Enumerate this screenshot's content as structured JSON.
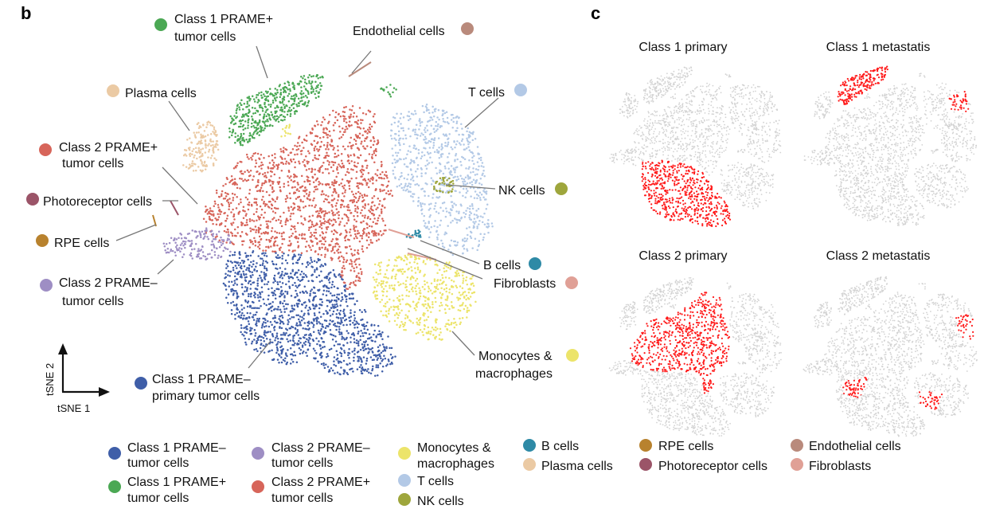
{
  "panel_b_letter": "b",
  "panel_c_letter": "c",
  "colors": {
    "class1_prame_minus": "#3f5ea8",
    "class1_prame_plus": "#4ba854",
    "class2_prame_minus": "#9e8ec4",
    "class2_prame_plus": "#d7655a",
    "monocytes": "#ece46a",
    "t_cells": "#b3c9e6",
    "nk_cells": "#9ea63c",
    "b_cells": "#2e8aa6",
    "plasma": "#ebcaa4",
    "rpe": "#b8822e",
    "photoreceptor": "#9b5468",
    "endothelial": "#b98a7c",
    "fibroblasts": "#e0a096",
    "background_grey": "#d2d2d2",
    "highlight_red": "#ff1a1a"
  },
  "axes": {
    "x_label": "tSNE 1",
    "y_label": "tSNE 2"
  },
  "cluster_labels": {
    "class1_plus_l1": "Class 1 PRAME+",
    "class1_plus_l2": "tumor cells",
    "endothelial": "Endothelial cells",
    "plasma": "Plasma cells",
    "t_cells": "T cells",
    "class2_plus_l1": "Class 2 PRAME+",
    "class2_plus_l2": "tumor cells",
    "photoreceptor": "Photoreceptor cells",
    "nk_cells": "NK cells",
    "rpe": "RPE cells",
    "b_cells": "B cells",
    "fibroblasts": "Fibroblasts",
    "class2_minus_l1": "Class 2 PRAME–",
    "class2_minus_l2": "tumor cells",
    "monocytes_l1": "Monocytes &",
    "monocytes_l2": "macrophages",
    "class1_minus_l1": "Class 1 PRAME–",
    "class1_minus_l2": "primary tumor cells"
  },
  "panel_c_titles": {
    "c1p": "Class 1 primary",
    "c1m": "Class 1 metastatis",
    "c2p": "Class 2 primary",
    "c2m": "Class 2 metastatis"
  },
  "legend": {
    "class1_minus_l1": "Class 1 PRAME–",
    "class1_minus_l2": "tumor cells",
    "class1_plus_l1": "Class 1 PRAME+",
    "class1_plus_l2": "tumor cells",
    "class2_minus_l1": "Class 2 PRAME–",
    "class2_minus_l2": "tumor cells",
    "class2_plus_l1": "Class 2 PRAME+",
    "class2_plus_l2": "tumor cells",
    "monocytes_l1": "Monocytes &",
    "monocytes_l2": "macrophages",
    "t_cells": "T cells",
    "nk_cells": "NK cells",
    "b_cells": "B cells",
    "plasma": "Plasma cells",
    "rpe": "RPE cells",
    "photoreceptor": "Photoreceptor cells",
    "endothelial": "Endothelial cells",
    "fibroblasts": "Fibroblasts"
  },
  "chart_data": {
    "type": "scatter",
    "xlabel": "tSNE 1",
    "ylabel": "tSNE 2",
    "series": [
      {
        "name": "Class 1 PRAME– tumor cells"
      },
      {
        "name": "Class 1 PRAME+ tumor cells"
      },
      {
        "name": "Class 2 PRAME– tumor cells"
      },
      {
        "name": "Class 2 PRAME+ tumor cells"
      },
      {
        "name": "Monocytes & macrophages"
      },
      {
        "name": "T cells"
      },
      {
        "name": "NK cells"
      },
      {
        "name": "B cells"
      },
      {
        "name": "Plasma cells"
      },
      {
        "name": "RPE cells"
      },
      {
        "name": "Photoreceptor cells"
      },
      {
        "name": "Endothelial cells"
      },
      {
        "name": "Fibroblasts"
      }
    ],
    "subplots": [
      "Class 1 primary",
      "Class 1 metastatis",
      "Class 2 primary",
      "Class 2 metastatis"
    ]
  }
}
